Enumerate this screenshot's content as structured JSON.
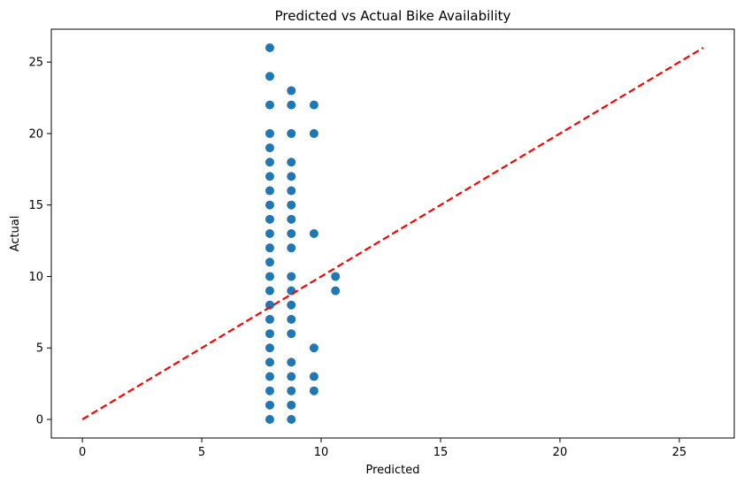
{
  "chart_data": {
    "type": "scatter",
    "title": "Predicted vs Actual Bike Availability",
    "xlabel": "Predicted",
    "ylabel": "Actual",
    "xlim": [
      -1.3,
      27.3
    ],
    "ylim": [
      -1.3,
      27.3
    ],
    "xticks": [
      0,
      5,
      10,
      15,
      20,
      25
    ],
    "yticks": [
      0,
      5,
      10,
      15,
      20,
      25
    ],
    "grid": false,
    "point_color": "#1f77b4",
    "line_color": "#ff0000",
    "series": [
      {
        "type": "scatter",
        "x": [
          7.85,
          7.85,
          7.85,
          7.85,
          7.85,
          7.85,
          7.85,
          7.85,
          7.85,
          7.85,
          7.85,
          7.85,
          7.85,
          7.85,
          7.85,
          7.85,
          7.85,
          7.85,
          7.85,
          7.85,
          7.85,
          7.85,
          7.85,
          7.85,
          8.75,
          8.75,
          8.75,
          8.75,
          8.75,
          8.75,
          8.75,
          8.75,
          8.75,
          8.75,
          8.75,
          8.75,
          8.75,
          8.75,
          8.75,
          8.75,
          8.75,
          8.75,
          8.75,
          8.75,
          9.7,
          9.7,
          9.7,
          9.7,
          9.7,
          9.7,
          10.6,
          10.6
        ],
        "y": [
          0,
          1,
          2,
          3,
          4,
          5,
          6,
          7,
          8,
          9,
          10,
          11,
          12,
          13,
          14,
          15,
          16,
          17,
          18,
          19,
          20,
          22,
          24,
          26,
          0,
          1,
          2,
          3,
          4,
          6,
          7,
          8,
          9,
          10,
          12,
          13,
          14,
          15,
          16,
          17,
          18,
          20,
          22,
          23,
          2,
          3,
          5,
          13,
          20,
          22,
          9,
          10
        ]
      },
      {
        "type": "line",
        "style": "dashed",
        "x": [
          0,
          26
        ],
        "y": [
          0,
          26
        ]
      }
    ]
  }
}
